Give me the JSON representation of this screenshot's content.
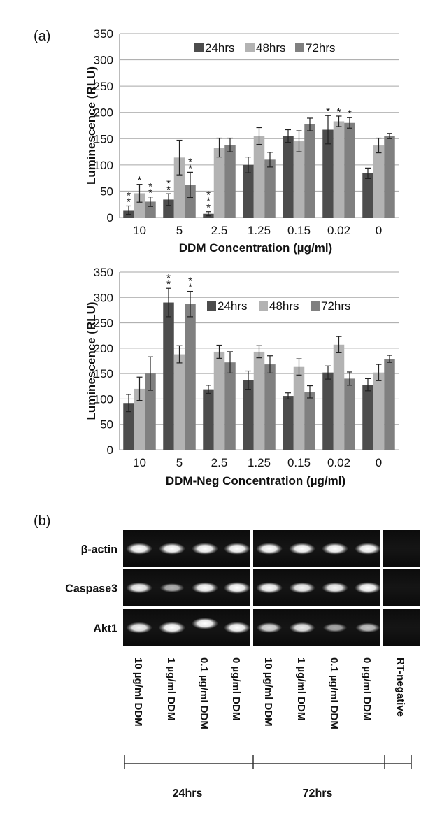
{
  "panel_a_label": "(a)",
  "panel_b_label": "(b)",
  "chart_data": [
    {
      "type": "bar",
      "categories": [
        "10",
        "5",
        "2.5",
        "1.25",
        "0.15",
        "0.02",
        "0"
      ],
      "series": [
        {
          "name": "24hrs",
          "color": "#4d4d4d",
          "values": [
            14,
            34,
            7,
            100,
            155,
            167,
            84
          ],
          "errors": [
            8,
            11,
            4,
            15,
            12,
            27,
            10
          ]
        },
        {
          "name": "48hrs",
          "color": "#b3b3b3",
          "values": [
            46,
            114,
            133,
            155,
            145,
            183,
            137
          ],
          "errors": [
            17,
            33,
            18,
            16,
            20,
            10,
            14
          ]
        },
        {
          "name": "72hrs",
          "color": "#808080",
          "values": [
            30,
            62,
            138,
            110,
            177,
            180,
            155
          ],
          "errors": [
            9,
            24,
            13,
            14,
            12,
            10,
            5
          ]
        }
      ],
      "annotations": [
        {
          "category": "10",
          "series": "24hrs",
          "text": "*\n*"
        },
        {
          "category": "10",
          "series": "48hrs",
          "text": "*"
        },
        {
          "category": "10",
          "series": "72hrs",
          "text": "*\n*"
        },
        {
          "category": "5",
          "series": "24hrs",
          "text": "*\n*"
        },
        {
          "category": "5",
          "series": "72hrs",
          "text": "*\n*"
        },
        {
          "category": "2.5",
          "series": "24hrs",
          "text": "*\n*\n*"
        },
        {
          "category": "0.02",
          "series": "24hrs",
          "text": "*"
        },
        {
          "category": "0.02",
          "series": "48hrs",
          "text": "*"
        },
        {
          "category": "0.02",
          "series": "72hrs",
          "text": "*"
        }
      ],
      "title": "",
      "xlabel": "DDM Concentration (µg/ml)",
      "ylabel": "Luminescence (RLU)",
      "ylim": [
        0,
        350
      ],
      "yticks": [
        0,
        50,
        100,
        150,
        200,
        250,
        300,
        350
      ],
      "grid": true,
      "legend": "top"
    },
    {
      "type": "bar",
      "categories": [
        "10",
        "5",
        "2.5",
        "1.25",
        "0.15",
        "0.02",
        "0"
      ],
      "series": [
        {
          "name": "24hrs",
          "color": "#4d4d4d",
          "values": [
            92,
            290,
            119,
            137,
            106,
            152,
            128
          ],
          "errors": [
            17,
            28,
            8,
            18,
            6,
            13,
            12
          ]
        },
        {
          "name": "48hrs",
          "color": "#b3b3b3",
          "values": [
            120,
            188,
            193,
            193,
            163,
            207,
            152
          ],
          "errors": [
            23,
            17,
            13,
            12,
            16,
            16,
            16
          ]
        },
        {
          "name": "72hrs",
          "color": "#808080",
          "values": [
            150,
            287,
            172,
            168,
            114,
            140,
            179
          ],
          "errors": [
            33,
            25,
            21,
            17,
            12,
            13,
            7
          ]
        }
      ],
      "annotations": [
        {
          "category": "5",
          "series": "24hrs",
          "text": "*\n*"
        },
        {
          "category": "5",
          "series": "72hrs",
          "text": "*\n*"
        }
      ],
      "title": "",
      "xlabel": "DDM-Neg Concentration (µg/ml)",
      "ylabel": "Luminescence (RLU)",
      "ylim": [
        0,
        350
      ],
      "yticks": [
        0,
        50,
        100,
        150,
        200,
        250,
        300,
        350
      ],
      "grid": true,
      "legend": "top"
    }
  ],
  "gel": {
    "rows": [
      "β-actin",
      "Caspase3",
      "Akt1"
    ],
    "lanes": [
      "10 µg/ml DDM",
      "1 µg/ml DDM",
      "0.1 µg/ml DDM",
      "0 µg/ml DDM",
      "10 µg/ml DDM",
      "1 µg/ml DDM",
      "0.1 µg/ml DDM",
      "0 µg/ml DDM",
      "RT-negative"
    ],
    "groups": [
      "24hrs",
      "72hrs"
    ],
    "band_intensity": [
      [
        0.95,
        0.95,
        0.95,
        0.95,
        0.95,
        0.95,
        0.95,
        0.95,
        0
      ],
      [
        0.85,
        0.45,
        0.9,
        1.0,
        0.9,
        0.85,
        0.85,
        0.95,
        0
      ],
      [
        0.85,
        1.0,
        0.95,
        0.95,
        0.7,
        0.8,
        0.4,
        0.55,
        0
      ]
    ]
  }
}
